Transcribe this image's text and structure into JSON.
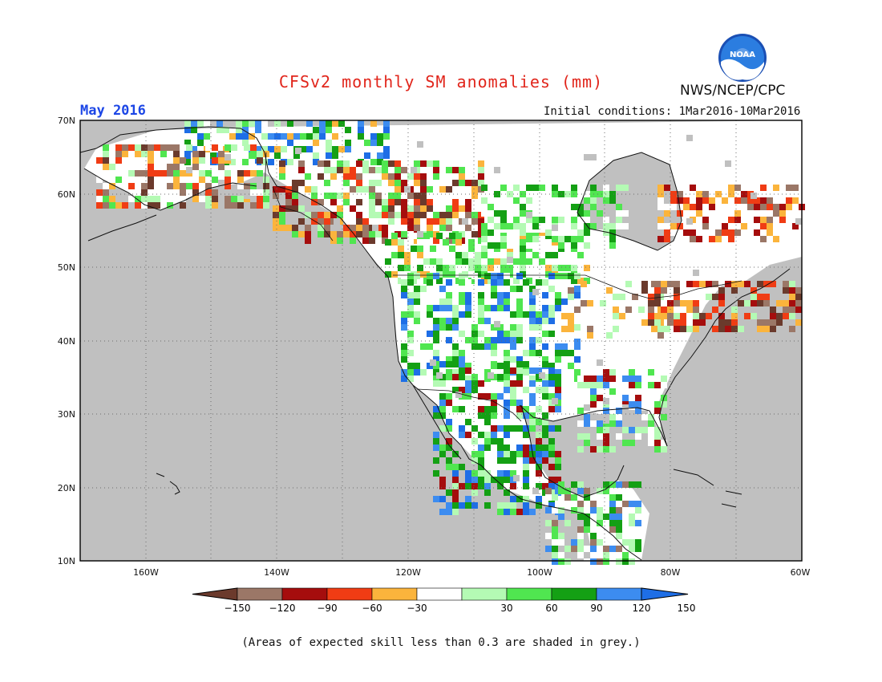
{
  "header": {
    "title": "CFSv2 monthly SM anomalies (mm)",
    "month": "May 2016",
    "initial_conditions": "Initial conditions: 1Mar2016-10Mar2016",
    "agency": "NWS/NCEP/CPC",
    "logo_text": "NOAA"
  },
  "map": {
    "lat_labels": [
      "70N",
      "60N",
      "50N",
      "40N",
      "30N",
      "20N",
      "10N"
    ],
    "lon_labels": [
      "160W",
      "140W",
      "120W",
      "100W",
      "80W",
      "60W"
    ],
    "background_grey": "#c0c0c0"
  },
  "legend": {
    "ticks": [
      "-150",
      "-120",
      "-90",
      "-60",
      "-30",
      "30",
      "60",
      "90",
      "120",
      "150"
    ],
    "colors": [
      "#6b3a2c",
      "#9b7767",
      "#a50d0d",
      "#f03c14",
      "#fbb43c",
      "#ffffff",
      "#b4fab4",
      "#50e650",
      "#14a014",
      "#3c8cf0",
      "#1e6ee6"
    ]
  },
  "footnote": "(Areas of expected skill less than 0.3 are shaded in grey.)"
}
